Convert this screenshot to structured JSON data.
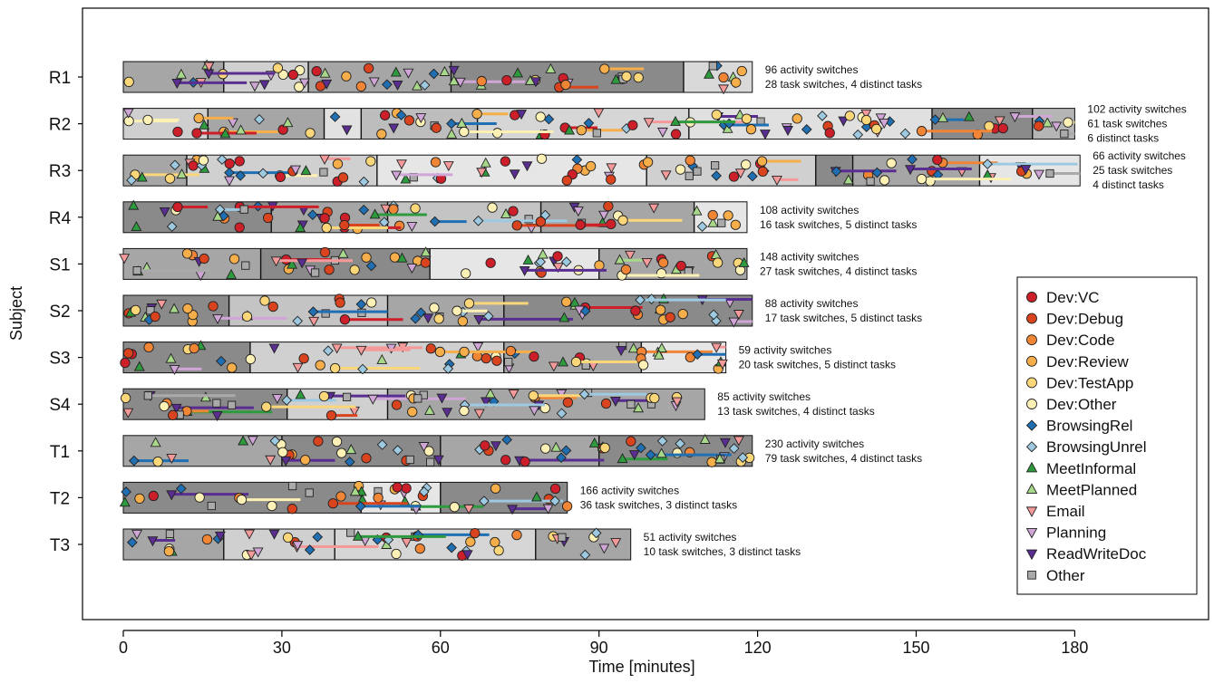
{
  "chart_data": {
    "type": "timeline",
    "xlabel": "Time [minutes]",
    "ylabel": "Subject",
    "xlim": [
      -6,
      200
    ],
    "xticks": [
      0,
      30,
      60,
      90,
      120,
      150,
      180
    ],
    "grid": false,
    "legend_position": "right",
    "legend": [
      {
        "name": "Dev:VC",
        "color": "#cc1f2a",
        "marker": "circle"
      },
      {
        "name": "Dev:Debug",
        "color": "#d9441f",
        "marker": "circle"
      },
      {
        "name": "Dev:Code",
        "color": "#f08535",
        "marker": "circle"
      },
      {
        "name": "Dev:Review",
        "color": "#f6ae4b",
        "marker": "circle"
      },
      {
        "name": "Dev:TestApp",
        "color": "#fbd77a",
        "marker": "circle"
      },
      {
        "name": "Dev:Other",
        "color": "#fdf1b6",
        "marker": "circle"
      },
      {
        "name": "BrowsingRel",
        "color": "#1f6fb2",
        "marker": "diamond"
      },
      {
        "name": "BrowsingUnrel",
        "color": "#9ecae1",
        "marker": "diamond"
      },
      {
        "name": "MeetInformal",
        "color": "#2e9a3e",
        "marker": "triangle-up"
      },
      {
        "name": "MeetPlanned",
        "color": "#a8d88a",
        "marker": "triangle-up"
      },
      {
        "name": "Email",
        "color": "#f59a9a",
        "marker": "triangle-down"
      },
      {
        "name": "Planning",
        "color": "#cfa6d6",
        "marker": "triangle-down"
      },
      {
        "name": "ReadWriteDoc",
        "color": "#5a2d91",
        "marker": "triangle-down"
      },
      {
        "name": "Other",
        "color": "#aaaaaa",
        "marker": "square"
      }
    ],
    "subjects": [
      {
        "label": "R1",
        "duration": 119,
        "annotation": [
          "96 activity switches",
          "28 task switches, 4 distinct tasks"
        ],
        "tasks": [
          [
            0,
            19,
            "#a6a6a6"
          ],
          [
            19,
            35,
            "#d0d0d0"
          ],
          [
            35,
            62,
            "#a6a6a6"
          ],
          [
            62,
            106,
            "#8a8a8a"
          ],
          [
            106,
            119,
            "#d9d9d9"
          ]
        ]
      },
      {
        "label": "R2",
        "duration": 180,
        "annotation": [
          "102 activity switches",
          "61 task switches",
          "6 distinct tasks"
        ],
        "tasks": [
          [
            0,
            16,
            "#cfcfcf"
          ],
          [
            16,
            38,
            "#a6a6a6"
          ],
          [
            38,
            45,
            "#e2e2e2"
          ],
          [
            45,
            67,
            "#bdbdbd"
          ],
          [
            67,
            107,
            "#d6d6d6"
          ],
          [
            107,
            153,
            "#e0e0e0"
          ],
          [
            153,
            172,
            "#8a8a8a"
          ],
          [
            172,
            180,
            "#b5b5b5"
          ]
        ]
      },
      {
        "label": "R3",
        "duration": 181,
        "annotation": [
          "66 activity switches",
          "25 task switches",
          "4 distinct tasks"
        ],
        "tasks": [
          [
            0,
            12,
            "#a6a6a6"
          ],
          [
            12,
            48,
            "#d0d0d0"
          ],
          [
            48,
            99,
            "#e6e6e6"
          ],
          [
            99,
            131,
            "#d0d0d0"
          ],
          [
            131,
            138,
            "#8a8a8a"
          ],
          [
            138,
            162,
            "#a6a6a6"
          ],
          [
            162,
            181,
            "#e6e6e6"
          ]
        ]
      },
      {
        "label": "R4",
        "duration": 118,
        "annotation": [
          "108 activity switches",
          "16 task switches, 5 distinct tasks"
        ],
        "tasks": [
          [
            0,
            28,
            "#8a8a8a"
          ],
          [
            28,
            50,
            "#a6a6a6"
          ],
          [
            50,
            79,
            "#c4c4c4"
          ],
          [
            79,
            108,
            "#a6a6a6"
          ],
          [
            108,
            118,
            "#e6e6e6"
          ]
        ]
      },
      {
        "label": "S1",
        "duration": 118,
        "annotation": [
          "148 activity switches",
          "27 task switches, 4 distinct tasks"
        ],
        "tasks": [
          [
            0,
            26,
            "#a6a6a6"
          ],
          [
            26,
            58,
            "#8a8a8a"
          ],
          [
            58,
            90,
            "#e6e6e6"
          ],
          [
            90,
            118,
            "#a6a6a6"
          ]
        ]
      },
      {
        "label": "S2",
        "duration": 119,
        "annotation": [
          "88 activity switches",
          "17 task switches, 5 distinct tasks"
        ],
        "tasks": [
          [
            0,
            20,
            "#8a8a8a"
          ],
          [
            20,
            50,
            "#c4c4c4"
          ],
          [
            50,
            72,
            "#a6a6a6"
          ],
          [
            72,
            119,
            "#8a8a8a"
          ]
        ]
      },
      {
        "label": "S3",
        "duration": 114,
        "annotation": [
          "59 activity switches",
          "20 task switches, 5 distinct tasks"
        ],
        "tasks": [
          [
            0,
            24,
            "#8a8a8a"
          ],
          [
            24,
            72,
            "#d0d0d0"
          ],
          [
            72,
            98,
            "#a6a6a6"
          ],
          [
            98,
            114,
            "#e6e6e6"
          ]
        ]
      },
      {
        "label": "S4",
        "duration": 110,
        "annotation": [
          "85 activity switches",
          "13 task switches, 4 distinct tasks"
        ],
        "tasks": [
          [
            0,
            31,
            "#8a8a8a"
          ],
          [
            31,
            50,
            "#d0d0d0"
          ],
          [
            50,
            110,
            "#a6a6a6"
          ]
        ]
      },
      {
        "label": "T1",
        "duration": 119,
        "annotation": [
          "230 activity switches",
          "79 task switches, 4 distinct tasks"
        ],
        "tasks": [
          [
            0,
            30,
            "#a6a6a6"
          ],
          [
            30,
            60,
            "#8a8a8a"
          ],
          [
            60,
            90,
            "#a6a6a6"
          ],
          [
            90,
            119,
            "#8a8a8a"
          ]
        ]
      },
      {
        "label": "T2",
        "duration": 84,
        "annotation": [
          "166 activity switches",
          "36 task switches, 3 distinct tasks"
        ],
        "tasks": [
          [
            0,
            45,
            "#8a8a8a"
          ],
          [
            45,
            60,
            "#e6e6e6"
          ],
          [
            60,
            84,
            "#8a8a8a"
          ]
        ]
      },
      {
        "label": "T3",
        "duration": 96,
        "annotation": [
          "51 activity switches",
          "10 task switches, 3 distinct tasks"
        ],
        "tasks": [
          [
            0,
            19,
            "#a6a6a6"
          ],
          [
            19,
            40,
            "#d0d0d0"
          ],
          [
            40,
            78,
            "#d6d6d6"
          ],
          [
            78,
            96,
            "#a6a6a6"
          ]
        ]
      }
    ]
  }
}
